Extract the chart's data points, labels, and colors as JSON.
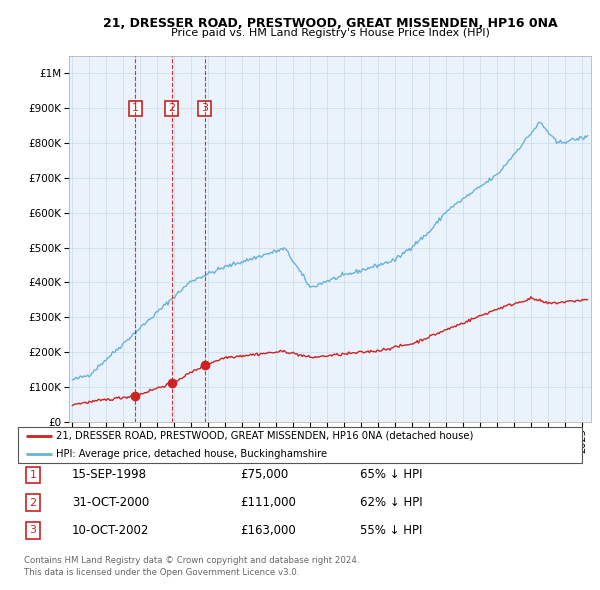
{
  "title": "21, DRESSER ROAD, PRESTWOOD, GREAT MISSENDEN, HP16 0NA",
  "subtitle": "Price paid vs. HM Land Registry's House Price Index (HPI)",
  "legend_line1": "21, DRESSER ROAD, PRESTWOOD, GREAT MISSENDEN, HP16 0NA (detached house)",
  "legend_line2": "HPI: Average price, detached house, Buckinghamshire",
  "footer1": "Contains HM Land Registry data © Crown copyright and database right 2024.",
  "footer2": "This data is licensed under the Open Government Licence v3.0.",
  "transactions": [
    {
      "num": 1,
      "date": "15-SEP-1998",
      "price": 75000,
      "pct": "65% ↓ HPI",
      "year_x": 1998.71
    },
    {
      "num": 2,
      "date": "31-OCT-2000",
      "price": 111000,
      "pct": "62% ↓ HPI",
      "year_x": 2000.83
    },
    {
      "num": 3,
      "date": "10-OCT-2002",
      "price": 163000,
      "pct": "55% ↓ HPI",
      "year_x": 2002.78
    }
  ],
  "hpi_color": "#6ab0d8",
  "price_color": "#cc2222",
  "vline_color": "#cc2222",
  "background_color": "#ffffff",
  "chart_bg_color": "#eaf3fb",
  "grid_color": "#c8dce8",
  "ylim": [
    0,
    1050000
  ],
  "xlim_start": 1994.8,
  "xlim_end": 2025.5
}
